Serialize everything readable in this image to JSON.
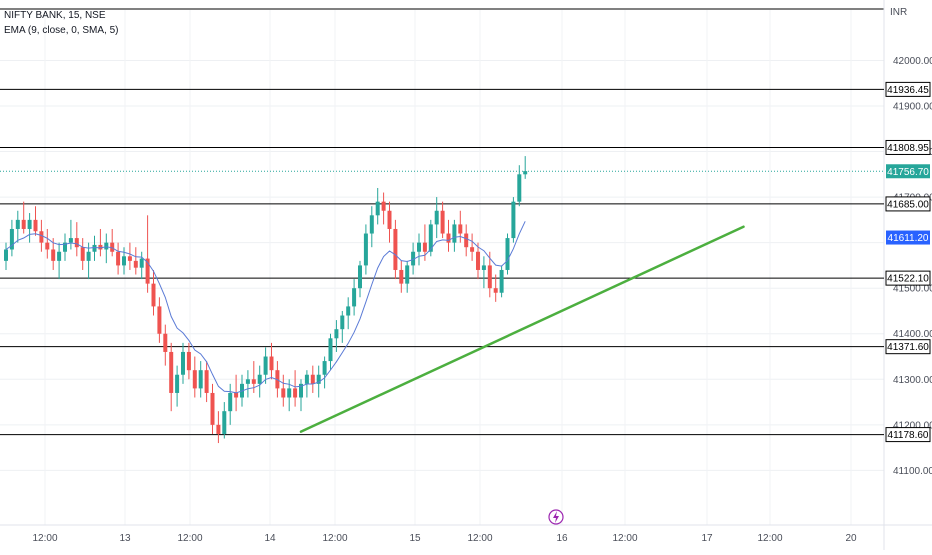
{
  "legend": {
    "symbol_line": "NIFTY BANK, 15, NSE",
    "indicator_line": "EMA (9, close, 0, SMA, 5)"
  },
  "currency_label": "INR",
  "colors": {
    "up": "#26a69a",
    "down": "#ef5350",
    "ema": "#5b7bd6",
    "trendline": "#4caf3f",
    "level_line": "#000000",
    "last_price_bg": "#26a69a",
    "ema_label_bg": "#2962ff"
  },
  "chart_data": {
    "type": "candlestick",
    "title": "NIFTY BANK, 15, NSE",
    "indicator": "EMA (9, close, 0, SMA, 5)",
    "y_axis": {
      "ticks": [
        "42000.00",
        "41900.00",
        "41800.00",
        "41700.00",
        "41500.00",
        "41400.00",
        "41300.00",
        "41200.00",
        "41100.00"
      ],
      "range": [
        41035,
        42080
      ]
    },
    "x_axis": {
      "ticks": [
        "12:00",
        "13",
        "12:00",
        "14",
        "12:00",
        "15",
        "12:00",
        "16",
        "12:00",
        "17",
        "12:00",
        "20"
      ]
    },
    "levels": [
      41936.45,
      41808.95,
      41685.0,
      41522.1,
      41371.6,
      41178.6
    ],
    "level_labels": [
      "41936.45",
      "41808.95",
      "41685.00",
      "41522.10",
      "41371.60",
      "41178.60"
    ],
    "last_price": {
      "value": 41756.7,
      "label": "41756.70"
    },
    "ema_last": {
      "value": 41611.2,
      "label": "41611.20"
    },
    "trendline": {
      "start": {
        "bar": 50,
        "price": 41185
      },
      "end": {
        "bar": 125,
        "price": 41635
      }
    },
    "candles": [
      [
        41560,
        41600,
        41540,
        41585
      ],
      [
        41585,
        41650,
        41570,
        41630
      ],
      [
        41630,
        41670,
        41600,
        41650
      ],
      [
        41650,
        41690,
        41620,
        41630
      ],
      [
        41630,
        41665,
        41600,
        41650
      ],
      [
        41650,
        41680,
        41615,
        41625
      ],
      [
        41625,
        41650,
        41580,
        41600
      ],
      [
        41600,
        41630,
        41565,
        41585
      ],
      [
        41585,
        41610,
        41540,
        41560
      ],
      [
        41560,
        41600,
        41520,
        41580
      ],
      [
        41580,
        41620,
        41560,
        41600
      ],
      [
        41600,
        41650,
        41585,
        41610
      ],
      [
        41610,
        41645,
        41570,
        41590
      ],
      [
        41590,
        41610,
        41540,
        41560
      ],
      [
        41560,
        41600,
        41520,
        41580
      ],
      [
        41580,
        41615,
        41560,
        41595
      ],
      [
        41595,
        41630,
        41570,
        41585
      ],
      [
        41585,
        41620,
        41555,
        41600
      ],
      [
        41600,
        41630,
        41570,
        41580
      ],
      [
        41580,
        41600,
        41530,
        41550
      ],
      [
        41550,
        41590,
        41530,
        41570
      ],
      [
        41570,
        41600,
        41540,
        41560
      ],
      [
        41560,
        41590,
        41530,
        41545
      ],
      [
        41545,
        41580,
        41520,
        41565
      ],
      [
        41565,
        41660,
        41490,
        41510
      ],
      [
        41510,
        41540,
        41440,
        41460
      ],
      [
        41460,
        41480,
        41380,
        41400
      ],
      [
        41400,
        41420,
        41330,
        41360
      ],
      [
        41360,
        41380,
        41230,
        41270
      ],
      [
        41270,
        41330,
        41240,
        41310
      ],
      [
        41310,
        41380,
        41290,
        41360
      ],
      [
        41360,
        41380,
        41300,
        41320
      ],
      [
        41320,
        41350,
        41260,
        41280
      ],
      [
        41280,
        41340,
        41260,
        41320
      ],
      [
        41320,
        41340,
        41250,
        41270
      ],
      [
        41270,
        41290,
        41180,
        41200
      ],
      [
        41200,
        41230,
        41160,
        41180
      ],
      [
        41180,
        41250,
        41170,
        41230
      ],
      [
        41230,
        41290,
        41200,
        41270
      ],
      [
        41270,
        41310,
        41230,
        41260
      ],
      [
        41260,
        41310,
        41240,
        41290
      ],
      [
        41290,
        41320,
        41260,
        41300
      ],
      [
        41300,
        41340,
        41270,
        41290
      ],
      [
        41290,
        41330,
        41260,
        41310
      ],
      [
        41310,
        41370,
        41290,
        41350
      ],
      [
        41350,
        41380,
        41300,
        41320
      ],
      [
        41320,
        41340,
        41260,
        41280
      ],
      [
        41280,
        41310,
        41240,
        41260
      ],
      [
        41260,
        41300,
        41230,
        41280
      ],
      [
        41280,
        41320,
        41240,
        41260
      ],
      [
        41260,
        41300,
        41230,
        41290
      ],
      [
        41290,
        41320,
        41260,
        41310
      ],
      [
        41310,
        41330,
        41270,
        41290
      ],
      [
        41290,
        41330,
        41260,
        41310
      ],
      [
        41310,
        41350,
        41280,
        41340
      ],
      [
        41340,
        41400,
        41320,
        41390
      ],
      [
        41390,
        41430,
        41360,
        41410
      ],
      [
        41410,
        41450,
        41380,
        41440
      ],
      [
        41440,
        41480,
        41410,
        41460
      ],
      [
        41460,
        41520,
        41440,
        41500
      ],
      [
        41500,
        41560,
        41480,
        41550
      ],
      [
        41550,
        41640,
        41530,
        41620
      ],
      [
        41620,
        41680,
        41590,
        41660
      ],
      [
        41660,
        41720,
        41640,
        41690
      ],
      [
        41690,
        41710,
        41640,
        41670
      ],
      [
        41670,
        41690,
        41600,
        41630
      ],
      [
        41630,
        41650,
        41520,
        41540
      ],
      [
        41540,
        41560,
        41490,
        41510
      ],
      [
        41510,
        41560,
        41490,
        41550
      ],
      [
        41550,
        41600,
        41530,
        41580
      ],
      [
        41580,
        41620,
        41550,
        41600
      ],
      [
        41600,
        41640,
        41560,
        41580
      ],
      [
        41580,
        41650,
        41570,
        41640
      ],
      [
        41640,
        41700,
        41610,
        41670
      ],
      [
        41670,
        41690,
        41610,
        41620
      ],
      [
        41620,
        41650,
        41580,
        41600
      ],
      [
        41600,
        41650,
        41580,
        41640
      ],
      [
        41640,
        41670,
        41600,
        41620
      ],
      [
        41620,
        41640,
        41570,
        41590
      ],
      [
        41590,
        41620,
        41560,
        41580
      ],
      [
        41580,
        41600,
        41520,
        41540
      ],
      [
        41540,
        41570,
        41500,
        41550
      ],
      [
        41550,
        41580,
        41480,
        41500
      ],
      [
        41500,
        41530,
        41470,
        41490
      ],
      [
        41490,
        41550,
        41480,
        41540
      ],
      [
        41540,
        41620,
        41530,
        41610
      ],
      [
        41610,
        41700,
        41600,
        41690
      ],
      [
        41690,
        41770,
        41680,
        41750
      ],
      [
        41750,
        41790,
        41740,
        41757
      ]
    ],
    "ema": []
  }
}
